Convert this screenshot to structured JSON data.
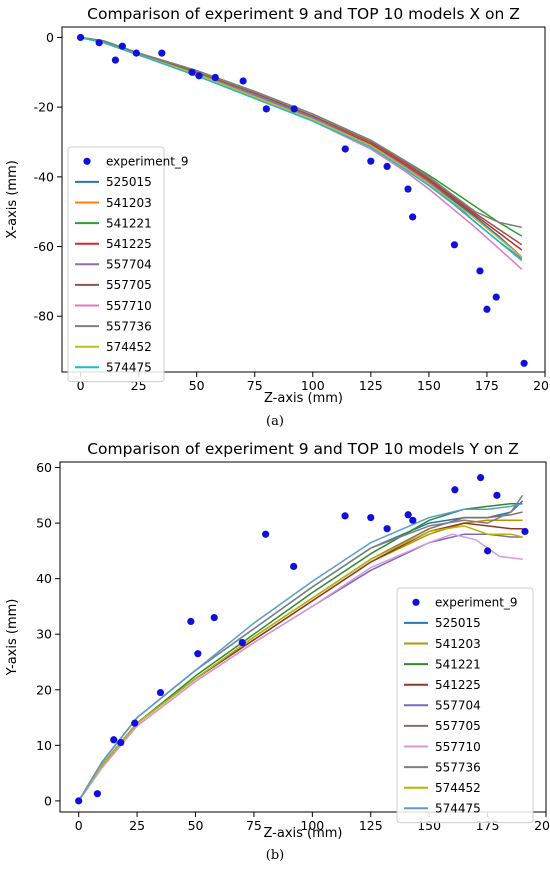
{
  "chart_data": [
    {
      "type": "line",
      "panel_label": "(a)",
      "title": "Comparison of experiment 9 and TOP 10 models X on Z",
      "xlabel": "Z-axis (mm)",
      "ylabel": "X-axis (mm)",
      "xlim": [
        -8,
        200
      ],
      "ylim": [
        -96,
        3
      ],
      "xticks": [
        0,
        25,
        50,
        75,
        100,
        125,
        150,
        175,
        200
      ],
      "yticks": [
        0,
        -20,
        -40,
        -60,
        -80
      ],
      "grid": false,
      "legend_position": "left",
      "scatter": {
        "name": "experiment_9",
        "color": "#1010dd",
        "x": [
          0,
          8,
          15,
          18,
          24,
          35,
          48,
          51,
          58,
          70,
          80,
          92,
          114,
          125,
          132,
          141,
          143,
          161,
          172,
          175,
          179,
          191
        ],
        "y": [
          0,
          -1.5,
          -6.5,
          -2.5,
          -4.5,
          -4.5,
          -10,
          -11,
          -11.5,
          -12.5,
          -20.5,
          -20.5,
          -32,
          -35.5,
          -37,
          -43.5,
          -51.5,
          -59.5,
          -67,
          -78,
          -74.5,
          -93.5
        ]
      },
      "series": [
        {
          "name": "525015",
          "color": "#1f77b4",
          "x": [
            0,
            10,
            25,
            50,
            75,
            100,
            125,
            140,
            150,
            160,
            170,
            180,
            190
          ],
          "y": [
            0,
            -1.5,
            -5,
            -10.5,
            -16.5,
            -23,
            -31,
            -37,
            -41.5,
            -46.5,
            -51.5,
            -57,
            -63
          ]
        },
        {
          "name": "541203",
          "color": "#ff7f0e",
          "x": [
            0,
            10,
            25,
            50,
            75,
            100,
            125,
            140,
            150,
            160,
            170,
            180,
            190
          ],
          "y": [
            0,
            -1.5,
            -5,
            -10.5,
            -17,
            -23.5,
            -31,
            -37.5,
            -42,
            -47.5,
            -53,
            -58.5,
            -64
          ]
        },
        {
          "name": "541221",
          "color": "#2ca02c",
          "x": [
            0,
            10,
            25,
            50,
            75,
            100,
            125,
            140,
            150,
            160,
            170,
            180,
            190
          ],
          "y": [
            0,
            -1,
            -4.5,
            -9.5,
            -15.5,
            -22,
            -29.5,
            -35.5,
            -39.5,
            -44,
            -48.5,
            -53,
            -57
          ]
        },
        {
          "name": "541225",
          "color": "#d62728",
          "x": [
            0,
            10,
            25,
            50,
            75,
            100,
            125,
            140,
            150,
            160,
            170,
            180,
            190
          ],
          "y": [
            0,
            -1.5,
            -5,
            -10.5,
            -16.5,
            -23,
            -30.5,
            -36.5,
            -41,
            -46,
            -51,
            -56,
            -61
          ]
        },
        {
          "name": "557704",
          "color": "#9467bd",
          "x": [
            0,
            10,
            25,
            50,
            75,
            100,
            125,
            140,
            150,
            160,
            170,
            180,
            190
          ],
          "y": [
            0,
            -1.5,
            -5,
            -10.5,
            -16.5,
            -23,
            -31,
            -37,
            -41.5,
            -47,
            -53,
            -58.5,
            -63.5
          ]
        },
        {
          "name": "557705",
          "color": "#8c564b",
          "x": [
            0,
            10,
            25,
            50,
            75,
            100,
            125,
            140,
            150,
            160,
            170,
            180,
            190
          ],
          "y": [
            0,
            -1,
            -4.5,
            -10,
            -16,
            -22.5,
            -30,
            -36,
            -40.5,
            -45.5,
            -50.5,
            -55,
            -59.5
          ]
        },
        {
          "name": "557710",
          "color": "#e377c2",
          "x": [
            0,
            10,
            25,
            50,
            75,
            100,
            125,
            140,
            150,
            160,
            170,
            180,
            190
          ],
          "y": [
            0,
            -1.5,
            -5,
            -11,
            -17.5,
            -24,
            -32,
            -38.5,
            -43.5,
            -49,
            -54.5,
            -60.5,
            -66.5
          ]
        },
        {
          "name": "557736",
          "color": "#7f7f7f",
          "x": [
            0,
            10,
            25,
            50,
            75,
            100,
            125,
            140,
            150,
            160,
            170,
            180,
            190
          ],
          "y": [
            0,
            -1,
            -4.5,
            -9.5,
            -15.5,
            -22,
            -29.5,
            -35.5,
            -40,
            -45,
            -50,
            -53,
            -54.5
          ]
        },
        {
          "name": "574452",
          "color": "#bcbd22",
          "x": [
            0,
            10,
            25,
            50,
            75,
            100,
            125,
            140,
            150,
            160,
            170,
            180,
            190
          ],
          "y": [
            0,
            -1.5,
            -5,
            -10.5,
            -17,
            -23.5,
            -31,
            -37.5,
            -42,
            -47,
            -52,
            -57.5,
            -63
          ]
        },
        {
          "name": "574475",
          "color": "#17becf",
          "x": [
            0,
            10,
            25,
            50,
            75,
            100,
            125,
            140,
            150,
            160,
            170,
            180,
            190
          ],
          "y": [
            0,
            -1.5,
            -5,
            -11,
            -17.5,
            -24,
            -31.5,
            -38,
            -42.5,
            -47.5,
            -53,
            -58.5,
            -64
          ]
        }
      ]
    },
    {
      "type": "line",
      "panel_label": "(b)",
      "title": "Comparison of experiment 9 and TOP 10 models Y on Z",
      "xlabel": "Z-axis (mm)",
      "ylabel": "Y-axis (mm)",
      "xlim": [
        -8,
        200
      ],
      "ylim": [
        -2,
        61
      ],
      "xticks": [
        0,
        25,
        50,
        75,
        100,
        125,
        150,
        175,
        200
      ],
      "yticks": [
        0,
        10,
        20,
        30,
        40,
        50,
        60
      ],
      "grid": false,
      "legend_position": "lower-right",
      "scatter": {
        "name": "experiment_9",
        "color": "#1010dd",
        "x": [
          0,
          8,
          15,
          18,
          24,
          35,
          48,
          51,
          58,
          70,
          80,
          92,
          114,
          125,
          132,
          141,
          143,
          161,
          172,
          175,
          179,
          191
        ],
        "y": [
          0,
          1.3,
          11,
          10.5,
          14,
          19.5,
          32.3,
          26.5,
          33,
          28.5,
          48,
          42.2,
          51.3,
          51,
          49,
          51.5,
          50.5,
          56,
          58.2,
          45,
          55,
          48.5
        ]
      },
      "series": [
        {
          "name": "525015",
          "color": "#1f77b4",
          "x": [
            0,
            10,
            25,
            50,
            75,
            100,
            125,
            150,
            165,
            175,
            185,
            190
          ],
          "y": [
            0,
            7,
            15,
            23.5,
            31,
            38.5,
            45.5,
            50,
            51,
            51,
            52,
            54
          ]
        },
        {
          "name": "541203",
          "color": "#bf8f00",
          "x": [
            0,
            10,
            25,
            50,
            75,
            100,
            125,
            150,
            165,
            175,
            185,
            190
          ],
          "y": [
            0,
            6.5,
            14,
            22,
            29,
            36,
            43,
            48,
            50,
            50.5,
            50.5,
            50.5
          ]
        },
        {
          "name": "541221",
          "color": "#2e8b2e",
          "x": [
            0,
            10,
            25,
            50,
            75,
            100,
            125,
            150,
            165,
            175,
            185,
            190
          ],
          "y": [
            0,
            6.5,
            14,
            22.5,
            30,
            37.5,
            44.5,
            50.5,
            52.5,
            53,
            53.5,
            53.5
          ]
        },
        {
          "name": "541225",
          "color": "#8b3a2a",
          "x": [
            0,
            10,
            25,
            50,
            75,
            100,
            125,
            150,
            165,
            175,
            185,
            190
          ],
          "y": [
            0,
            6.5,
            14,
            22,
            29,
            36,
            43,
            48.5,
            50,
            49.5,
            49,
            49
          ]
        },
        {
          "name": "557704",
          "color": "#7b68c8",
          "x": [
            0,
            10,
            25,
            50,
            75,
            100,
            125,
            150,
            165,
            175,
            185,
            190
          ],
          "y": [
            0,
            6,
            13.5,
            21.5,
            28.5,
            35,
            41.5,
            46.5,
            48,
            48,
            47.5,
            47.5
          ]
        },
        {
          "name": "557705",
          "color": "#8c6d5a",
          "x": [
            0,
            10,
            25,
            50,
            75,
            100,
            125,
            150,
            165,
            175,
            185,
            190
          ],
          "y": [
            0,
            6.5,
            14,
            22,
            29.5,
            36.5,
            43.5,
            49,
            51,
            51,
            51.5,
            52
          ]
        },
        {
          "name": "557710",
          "color": "#d49bd8",
          "x": [
            0,
            10,
            25,
            50,
            75,
            100,
            125,
            150,
            160,
            170,
            180,
            190
          ],
          "y": [
            0,
            6,
            13.5,
            21.5,
            28.5,
            35,
            42,
            46.5,
            48,
            47,
            44,
            43.5
          ]
        },
        {
          "name": "557736",
          "color": "#7f7f7f",
          "x": [
            0,
            10,
            25,
            50,
            75,
            100,
            125,
            150,
            165,
            175,
            185,
            190
          ],
          "y": [
            0,
            7,
            15,
            23.5,
            31,
            38.5,
            45.5,
            49.5,
            50.5,
            50,
            52,
            55
          ]
        },
        {
          "name": "574452",
          "color": "#b5b500",
          "x": [
            0,
            10,
            25,
            50,
            75,
            100,
            125,
            150,
            165,
            175,
            185,
            190
          ],
          "y": [
            0,
            6.5,
            14,
            22,
            29.5,
            36.5,
            43.5,
            48.5,
            49.5,
            48,
            48,
            47.5
          ]
        },
        {
          "name": "574475",
          "color": "#5b9bd5",
          "x": [
            0,
            10,
            25,
            50,
            75,
            100,
            125,
            150,
            165,
            175,
            185,
            190
          ],
          "y": [
            0,
            7,
            15,
            23.5,
            32,
            39.5,
            46.5,
            51,
            52.5,
            52.5,
            53,
            53.5
          ]
        }
      ]
    }
  ]
}
